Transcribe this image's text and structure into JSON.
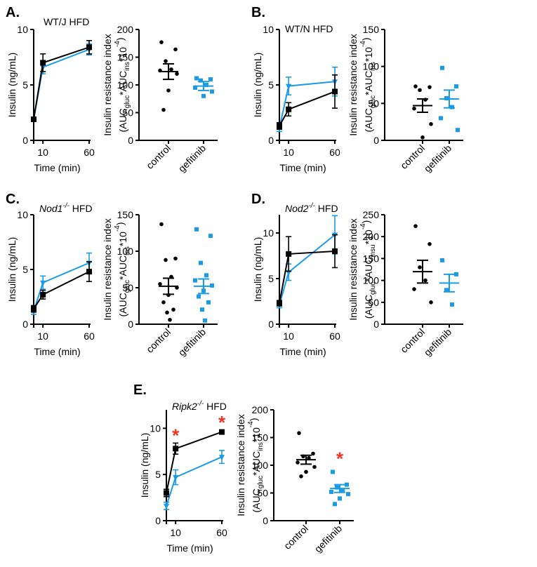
{
  "colors": {
    "control": "#000000",
    "gefitinib": "#1a9be6",
    "significance": "#ee3524"
  },
  "chart_data": [
    {
      "panel": "A.",
      "type": "line",
      "title": "WT/J HFD",
      "title_italic": "",
      "title_sup": "",
      "xlabel": "Time (min)",
      "ylabel": "Insulin (ng/mL)",
      "x_ticks": [
        "10",
        "60"
      ],
      "y_ticks": [
        "0",
        "5",
        "10"
      ],
      "ylim": [
        0,
        10
      ],
      "series": [
        {
          "key": "control",
          "x": [
            0,
            10,
            60
          ],
          "y": [
            1.9,
            7.0,
            8.4
          ],
          "err": [
            0.2,
            0.8,
            0.6
          ]
        },
        {
          "key": "gefitinib",
          "x": [
            0,
            10,
            60
          ],
          "y": [
            1.9,
            6.6,
            8.2
          ],
          "err": [
            0.2,
            0.6,
            0.5
          ]
        }
      ]
    },
    {
      "panel": "A.",
      "type": "scatter",
      "ylabel_top": "Insulin resistance index",
      "ylabel_parts": [
        "(AUC",
        "gluc",
        "*AUC",
        "ins",
        "*10",
        "-4",
        ")"
      ],
      "categories": [
        "control",
        "gefitinib"
      ],
      "y_ticks": [
        "0",
        "50",
        "100",
        "150",
        "200"
      ],
      "ylim": [
        0,
        200
      ],
      "groups": [
        {
          "key": "control",
          "mean": 124,
          "sem": 14,
          "values": [
            177,
            164,
            143,
            128,
            126,
            120,
            90,
            55
          ],
          "star": false
        },
        {
          "key": "gefitinib",
          "mean": 98,
          "sem": 8,
          "values": [
            112,
            110,
            108,
            100,
            95,
            88,
            80
          ],
          "star": false
        }
      ]
    },
    {
      "panel": "B.",
      "type": "line",
      "title": "WT/N HFD",
      "title_italic": "",
      "title_sup": "",
      "xlabel": "Time (min)",
      "ylabel": "Insulin (ng/mL)",
      "x_ticks": [
        "10",
        "60"
      ],
      "y_ticks": [
        "0",
        "5",
        "10"
      ],
      "ylim": [
        0,
        10
      ],
      "series": [
        {
          "key": "control",
          "x": [
            0,
            10,
            60
          ],
          "y": [
            1.3,
            2.8,
            4.4
          ],
          "err": [
            0.3,
            0.6,
            1.5
          ]
        },
        {
          "key": "gefitinib",
          "x": [
            0,
            10,
            60
          ],
          "y": [
            1.1,
            4.9,
            5.3
          ],
          "err": [
            0.3,
            0.8,
            1.3
          ]
        }
      ]
    },
    {
      "panel": "B.",
      "type": "scatter",
      "ylabel_top": "Insulin resistance index",
      "ylabel_parts": [
        "(AUC",
        "gluc",
        "*AUC",
        "ins",
        "*10",
        "-4",
        ")"
      ],
      "categories": [
        "control",
        "gefitinib"
      ],
      "y_ticks": [
        "0",
        "50",
        "100",
        "150"
      ],
      "ylim": [
        0,
        150
      ],
      "groups": [
        {
          "key": "control",
          "mean": 47,
          "sem": 9,
          "values": [
            73,
            72,
            68,
            55,
            43,
            22,
            4
          ],
          "star": false
        },
        {
          "key": "gefitinib",
          "mean": 56,
          "sem": 12,
          "values": [
            98,
            73,
            57,
            45,
            30,
            14
          ],
          "star": false
        }
      ]
    },
    {
      "panel": "C.",
      "type": "line",
      "title": " HFD",
      "title_italic": "Nod1",
      "title_sup": "-/-",
      "xlabel": "Time (min)",
      "ylabel": "Insulin (ng/mL)",
      "x_ticks": [
        "10",
        "60"
      ],
      "y_ticks": [
        "0",
        "5",
        "10"
      ],
      "ylim": [
        0,
        10
      ],
      "series": [
        {
          "key": "control",
          "x": [
            0,
            10,
            60
          ],
          "y": [
            1.4,
            2.7,
            4.8
          ],
          "err": [
            0.3,
            0.4,
            0.9
          ]
        },
        {
          "key": "gefitinib",
          "x": [
            0,
            10,
            60
          ],
          "y": [
            1.2,
            3.8,
            5.6
          ],
          "err": [
            0.3,
            0.6,
            0.9
          ]
        }
      ]
    },
    {
      "panel": "C.",
      "type": "scatter",
      "ylabel_top": "Insulin resistance index",
      "ylabel_parts": [
        "(AUC",
        "gluc",
        "*AUC",
        "ins",
        "*10",
        "-4",
        ")"
      ],
      "categories": [
        "control",
        "gefitinib"
      ],
      "y_ticks": [
        "0",
        "50",
        "100",
        "150"
      ],
      "ylim": [
        0,
        150
      ],
      "groups": [
        {
          "key": "control",
          "mean": 52,
          "sem": 11,
          "values": [
            137,
            90,
            88,
            65,
            55,
            50,
            40,
            30,
            20,
            16,
            6
          ],
          "star": false
        },
        {
          "key": "gefitinib",
          "mean": 52,
          "sem": 10,
          "values": [
            130,
            121,
            84,
            67,
            60,
            53,
            46,
            38,
            30,
            20,
            5
          ],
          "star": false
        }
      ]
    },
    {
      "panel": "D.",
      "type": "line",
      "title": " HFD",
      "title_italic": "Nod2",
      "title_sup": "-/-",
      "xlabel": "Time (min)",
      "ylabel": "Insulin (ng/mL)",
      "x_ticks": [
        "10",
        "60"
      ],
      "y_ticks": [
        "0",
        "5",
        "10"
      ],
      "ylim": [
        0,
        12
      ],
      "series": [
        {
          "key": "control",
          "x": [
            0,
            10,
            60
          ],
          "y": [
            2.3,
            7.7,
            8.0
          ],
          "err": [
            0.3,
            1.9,
            1.8
          ]
        },
        {
          "key": "gefitinib",
          "x": [
            0,
            10,
            60
          ],
          "y": [
            2.1,
            5.7,
            9.8
          ],
          "err": [
            0.3,
            0.9,
            2.1
          ]
        }
      ]
    },
    {
      "panel": "D.",
      "type": "scatter",
      "ylabel_top": "Insulin resistance index",
      "ylabel_parts": [
        "(AUC",
        "gluc",
        "*AUC",
        "insu",
        "*10",
        "-4",
        ")"
      ],
      "categories": [
        "control",
        "gefitinib"
      ],
      "y_ticks": [
        "0",
        "50",
        "100",
        "150",
        "200",
        "250"
      ],
      "ylim": [
        0,
        250
      ],
      "groups": [
        {
          "key": "control",
          "mean": 120,
          "sem": 26,
          "values": [
            224,
            183,
            130,
            100,
            80,
            50
          ],
          "star": false
        },
        {
          "key": "gefitinib",
          "mean": 94,
          "sem": 20,
          "values": [
            146,
            114,
            78,
            45
          ],
          "star": false
        }
      ]
    },
    {
      "panel": "E.",
      "type": "line",
      "title": " HFD",
      "title_italic": "Ripk2",
      "title_sup": "-/-",
      "xlabel": "Time (min)",
      "ylabel": "Insulin (ng/mL)",
      "x_ticks": [
        "10",
        "60"
      ],
      "y_ticks": [
        "0",
        "5",
        "10"
      ],
      "ylim": [
        0,
        12
      ],
      "stars_x": [
        10,
        60
      ],
      "series": [
        {
          "key": "control",
          "x": [
            0,
            10,
            60
          ],
          "y": [
            3.0,
            7.8,
            9.6
          ],
          "err": [
            0.4,
            0.6,
            0.2
          ]
        },
        {
          "key": "gefitinib",
          "x": [
            0,
            10,
            60
          ],
          "y": [
            1.6,
            4.7,
            6.9
          ],
          "err": [
            0.4,
            0.8,
            0.7
          ]
        }
      ]
    },
    {
      "panel": "E.",
      "type": "scatter",
      "ylabel_top": "Insulin resistance index",
      "ylabel_parts": [
        "(AUC",
        "gluc",
        "*AUC",
        "ins",
        "*10",
        "-4",
        ")"
      ],
      "categories": [
        "control",
        "gefitinib"
      ],
      "y_ticks": [
        "0",
        "50",
        "100",
        "150",
        "200"
      ],
      "ylim": [
        0,
        200
      ],
      "groups": [
        {
          "key": "control",
          "mean": 110,
          "sem": 8,
          "values": [
            158,
            121,
            116,
            113,
            105,
            97,
            88,
            80
          ],
          "star": false
        },
        {
          "key": "gefitinib",
          "mean": 58,
          "sem": 7,
          "values": [
            88,
            65,
            60,
            55,
            52,
            48,
            40,
            30
          ],
          "star": true
        }
      ]
    }
  ]
}
